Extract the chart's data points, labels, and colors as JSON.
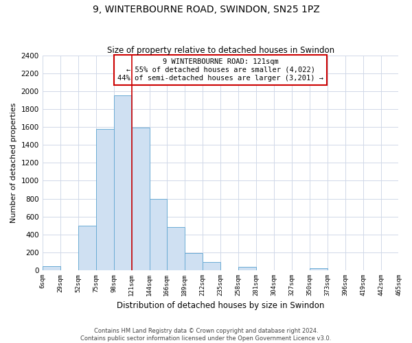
{
  "title": "9, WINTERBOURNE ROAD, SWINDON, SN25 1PZ",
  "subtitle": "Size of property relative to detached houses in Swindon",
  "xlabel": "Distribution of detached houses by size in Swindon",
  "ylabel": "Number of detached properties",
  "footer_line1": "Contains HM Land Registry data © Crown copyright and database right 2024.",
  "footer_line2": "Contains public sector information licensed under the Open Government Licence v3.0.",
  "annotation_line1": "9 WINTERBOURNE ROAD: 121sqm",
  "annotation_line2": "← 55% of detached houses are smaller (4,022)",
  "annotation_line3": "44% of semi-detached houses are larger (3,201) →",
  "bar_edges": [
    6,
    29,
    52,
    75,
    98,
    121,
    144,
    166,
    189,
    212,
    235,
    258,
    281,
    304,
    327,
    350,
    373,
    396,
    419,
    442,
    465
  ],
  "bar_heights": [
    50,
    0,
    500,
    1580,
    1950,
    1590,
    800,
    480,
    190,
    90,
    0,
    35,
    0,
    0,
    0,
    20,
    0,
    0,
    0,
    0
  ],
  "bar_color": "#cfe0f2",
  "bar_edgecolor": "#6aabd4",
  "vline_x": 121,
  "vline_color": "#cc0000",
  "ylim": [
    0,
    2400
  ],
  "yticks": [
    0,
    200,
    400,
    600,
    800,
    1000,
    1200,
    1400,
    1600,
    1800,
    2000,
    2200,
    2400
  ],
  "xtick_labels": [
    "6sqm",
    "29sqm",
    "52sqm",
    "75sqm",
    "98sqm",
    "121sqm",
    "144sqm",
    "166sqm",
    "189sqm",
    "212sqm",
    "235sqm",
    "258sqm",
    "281sqm",
    "304sqm",
    "327sqm",
    "350sqm",
    "373sqm",
    "396sqm",
    "419sqm",
    "442sqm",
    "465sqm"
  ],
  "annotation_box_edgecolor": "#cc0000",
  "background_color": "#ffffff",
  "grid_color": "#d0d8e8"
}
